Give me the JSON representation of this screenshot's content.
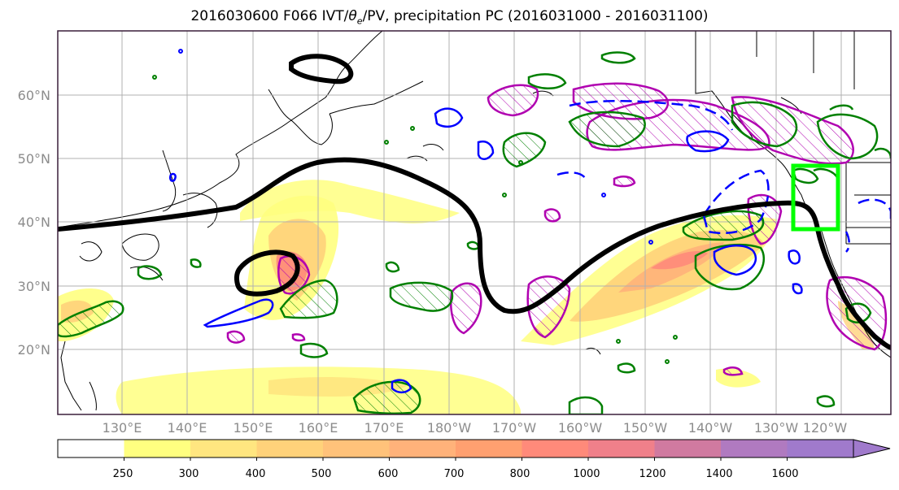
{
  "title_prefix": "2016030600 F066 IVT/",
  "title_theta": "θ",
  "title_sub": "e",
  "title_suffix": "/PV, precipitation PC (2016031000 - 2016031100)",
  "latitude_labels": [
    "60°N",
    "50°N",
    "40°N",
    "30°N",
    "20°N"
  ],
  "longitude_labels": [
    "130°E",
    "140°E",
    "150°E",
    "160°E",
    "170°E",
    "180°W",
    "170°W",
    "160°W",
    "150°W",
    "140°W",
    "130°W",
    "120°W"
  ],
  "colorbar": {
    "ticks": [
      "250",
      "300",
      "400",
      "500",
      "600",
      "700",
      "800",
      "1000",
      "1200",
      "1400",
      "1600"
    ],
    "colors": [
      "#ffffff",
      "#ffff80",
      "#ffe680",
      "#ffd27a",
      "#ffc27a",
      "#ffb27a",
      "#ffa070",
      "#ff8a7a",
      "#f0808a",
      "#d07aa0",
      "#b07ac0",
      "#a07acc"
    ]
  },
  "colors": {
    "pv_contour": "#000000",
    "positive_anomaly": "#008000",
    "negative_anomaly": "#0000ff",
    "theta_e": "#b000b0",
    "target_box": "#00ff00"
  }
}
